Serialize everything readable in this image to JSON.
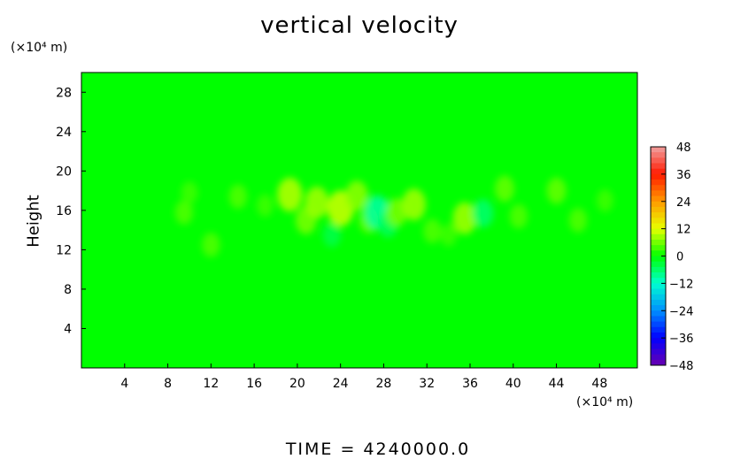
{
  "chart_data": {
    "type": "heatmap",
    "title": "vertical velocity",
    "ylabel": "Height",
    "y_unit": "(×10⁴ m)",
    "x_unit": "(×10⁴ m)",
    "xlim": [
      0,
      51.5
    ],
    "ylim": [
      0,
      30
    ],
    "x_ticks": [
      4,
      8,
      12,
      16,
      20,
      24,
      28,
      32,
      36,
      40,
      44,
      48
    ],
    "y_ticks": [
      4,
      8,
      12,
      16,
      20,
      24,
      28
    ],
    "background_value": 0,
    "colorbar": {
      "levels": [
        48,
        36,
        24,
        12,
        0,
        -12,
        -24,
        -36,
        -48
      ],
      "range": [
        -48,
        48
      ],
      "colors": {
        "top": "#f0a0a0",
        "red": "#ff1a00",
        "orange": "#ff9a00",
        "yellow": "#e8ff00",
        "green": "#00ff00",
        "cyan": "#00ffd0",
        "sky": "#0090ff",
        "blue": "#0000ff",
        "purple": "#6a00b0"
      }
    },
    "anomalies": [
      {
        "x": 9.5,
        "y": 15.8,
        "value": 4
      },
      {
        "x": 10.0,
        "y": 17.8,
        "value": 3
      },
      {
        "x": 12.0,
        "y": 12.5,
        "value": 4
      },
      {
        "x": 14.5,
        "y": 17.4,
        "value": 4
      },
      {
        "x": 17.0,
        "y": 16.5,
        "value": 3
      },
      {
        "x": 19.3,
        "y": 17.6,
        "value": 9
      },
      {
        "x": 20.8,
        "y": 15.0,
        "value": 6
      },
      {
        "x": 21.8,
        "y": 16.8,
        "value": 8
      },
      {
        "x": 24.0,
        "y": 16.2,
        "value": 10
      },
      {
        "x": 25.5,
        "y": 17.5,
        "value": 7
      },
      {
        "x": 26.6,
        "y": 15.0,
        "value": 5
      },
      {
        "x": 27.4,
        "y": 15.8,
        "value": -9
      },
      {
        "x": 28.4,
        "y": 14.6,
        "value": -5
      },
      {
        "x": 29.2,
        "y": 15.8,
        "value": 6
      },
      {
        "x": 30.8,
        "y": 16.6,
        "value": 8
      },
      {
        "x": 32.5,
        "y": 13.9,
        "value": 4
      },
      {
        "x": 35.5,
        "y": 15.2,
        "value": 8
      },
      {
        "x": 37.2,
        "y": 15.7,
        "value": -6
      },
      {
        "x": 39.2,
        "y": 18.2,
        "value": 5
      },
      {
        "x": 40.5,
        "y": 15.4,
        "value": 4
      },
      {
        "x": 44.0,
        "y": 18.0,
        "value": 5
      },
      {
        "x": 46.0,
        "y": 15.0,
        "value": 4
      },
      {
        "x": 48.5,
        "y": 17.0,
        "value": 3
      },
      {
        "x": 23.2,
        "y": 13.5,
        "value": -4
      },
      {
        "x": 34.0,
        "y": 13.5,
        "value": 3
      }
    ]
  },
  "footer": "TIME  =  4240000.0"
}
